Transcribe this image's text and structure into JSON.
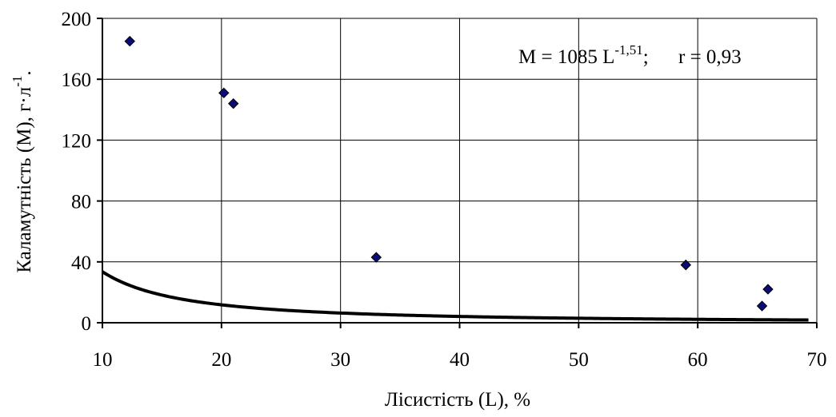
{
  "chart_data": {
    "type": "scatter",
    "xlabel": "Лісистість (L), %",
    "ylabel": "Каламутність (M), г·л",
    "ylabel_sup": "-1",
    "ylabel_tail": ".",
    "xlim": [
      10,
      70
    ],
    "ylim": [
      0,
      200
    ],
    "x_ticks": [
      10,
      20,
      30,
      40,
      50,
      60,
      70
    ],
    "y_ticks": [
      0,
      40,
      80,
      120,
      160,
      200
    ],
    "grid": true,
    "legend": "none",
    "points": [
      {
        "x": 12.3,
        "y": 185
      },
      {
        "x": 20.2,
        "y": 151
      },
      {
        "x": 21.0,
        "y": 144
      },
      {
        "x": 33.0,
        "y": 43
      },
      {
        "x": 59.0,
        "y": 38
      },
      {
        "x": 65.4,
        "y": 11
      },
      {
        "x": 65.9,
        "y": 22
      }
    ],
    "fit": {
      "coef": 1085,
      "exponent": -1.51,
      "x_range": [
        10,
        69.3
      ],
      "equation_main": "M = 1085 L",
      "equation_exp": "-1,51",
      "equation_tail": ";",
      "r_text": "r = 0,93"
    },
    "colors": {
      "marker": "#0c0c78",
      "line": "#000000",
      "grid": "#000000"
    }
  }
}
